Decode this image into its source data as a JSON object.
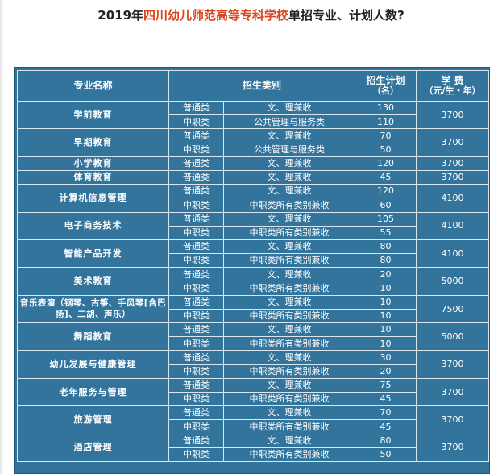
{
  "page_title": {
    "prefix": "2019年",
    "school": "四川幼儿师范高等专科学校",
    "suffix": "单招专业、计划人数?"
  },
  "table": {
    "headers": {
      "major": "专业名称",
      "category": "招生类别",
      "plan_line1": "招生计划",
      "plan_line2": "（名）",
      "fee_line1": "学 费",
      "fee_line2": "（元/生・年）"
    },
    "majors": [
      {
        "name": "学前教育",
        "fee": "3700",
        "rows": [
          {
            "type": "普通类",
            "scope": "文、理兼收",
            "count": "130"
          },
          {
            "type": "中职类",
            "scope": "公共管理与服务类",
            "count": "110"
          }
        ]
      },
      {
        "name": "早期教育",
        "fee": "3700",
        "rows": [
          {
            "type": "普通类",
            "scope": "文、理兼收",
            "count": "70"
          },
          {
            "type": "中职类",
            "scope": "公共管理与服务类",
            "count": "50"
          }
        ]
      },
      {
        "name": "小学教育",
        "fee": "3700",
        "rows": [
          {
            "type": "普通类",
            "scope": "文、理兼收",
            "count": "120"
          }
        ]
      },
      {
        "name": "体育教育",
        "fee": "3700",
        "rows": [
          {
            "type": "普通类",
            "scope": "文、理兼收",
            "count": "45"
          }
        ]
      },
      {
        "name": "计算机信息管理",
        "fee": "4100",
        "rows": [
          {
            "type": "普通类",
            "scope": "文、理兼收",
            "count": "120"
          },
          {
            "type": "中职类",
            "scope": "中职类所有类别兼收",
            "count": "60"
          }
        ]
      },
      {
        "name": "电子商务技术",
        "fee": "4100",
        "rows": [
          {
            "type": "普通类",
            "scope": "文、理兼收",
            "count": "105"
          },
          {
            "type": "中职类",
            "scope": "中职类所有类别兼收",
            "count": "55"
          }
        ]
      },
      {
        "name": "智能产品开发",
        "fee": "4100",
        "rows": [
          {
            "type": "普通类",
            "scope": "文、理兼收",
            "count": "80"
          },
          {
            "type": "中职类",
            "scope": "中职类所有类别兼收",
            "count": "80"
          }
        ]
      },
      {
        "name": "美术教育",
        "fee": "5000",
        "rows": [
          {
            "type": "普通类",
            "scope": "文、理兼收",
            "count": "20"
          },
          {
            "type": "中职类",
            "scope": "中职类所有类别兼收",
            "count": "10"
          }
        ]
      },
      {
        "name": "音乐表演（钢琴、古筝、手风琴[含巴扬]、二胡、声乐）",
        "fee": "7500",
        "rows": [
          {
            "type": "普通类",
            "scope": "文、理兼收",
            "count": "10"
          },
          {
            "type": "中职类",
            "scope": "中职类所有类别兼收",
            "count": "10"
          }
        ]
      },
      {
        "name": "舞蹈教育",
        "fee": "5000",
        "rows": [
          {
            "type": "普通类",
            "scope": "文、理兼收",
            "count": "10"
          },
          {
            "type": "中职类",
            "scope": "中职类所有类别兼收",
            "count": "10"
          }
        ]
      },
      {
        "name": "幼儿发展与健康管理",
        "fee": "3700",
        "rows": [
          {
            "type": "普通类",
            "scope": "文、理兼收",
            "count": "30"
          },
          {
            "type": "中职类",
            "scope": "中职类所有类别兼收",
            "count": "20"
          }
        ]
      },
      {
        "name": "老年服务与管理",
        "fee": "3700",
        "rows": [
          {
            "type": "普通类",
            "scope": "文、理兼收",
            "count": "75"
          },
          {
            "type": "中职类",
            "scope": "中职类所有类别兼收",
            "count": "45"
          }
        ]
      },
      {
        "name": "旅游管理",
        "fee": "3700",
        "rows": [
          {
            "type": "普通类",
            "scope": "文、理兼收",
            "count": "70"
          },
          {
            "type": "中职类",
            "scope": "中职类所有类别兼收",
            "count": "45"
          }
        ]
      },
      {
        "name": "酒店管理",
        "fee": "3700",
        "rows": [
          {
            "type": "普通类",
            "scope": "文、理兼收",
            "count": "80"
          },
          {
            "type": "中职类",
            "scope": "中职类所有类别兼收",
            "count": "50"
          }
        ]
      }
    ]
  },
  "colors": {
    "table_background": "#32749c",
    "title_highlight": "#d9441a",
    "grid_line": "#d8e6ef"
  }
}
